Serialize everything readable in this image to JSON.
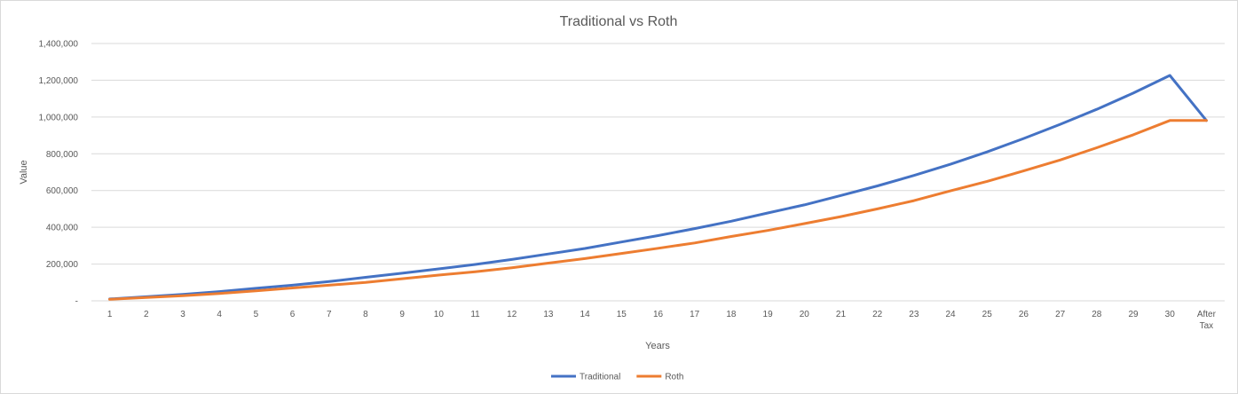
{
  "chart_data": {
    "type": "line",
    "title": "Traditional vs Roth",
    "xlabel": "Years",
    "ylabel": "Value",
    "categories": [
      "1",
      "2",
      "3",
      "4",
      "5",
      "6",
      "7",
      "8",
      "9",
      "10",
      "11",
      "12",
      "13",
      "14",
      "15",
      "16",
      "17",
      "18",
      "19",
      "20",
      "21",
      "22",
      "23",
      "24",
      "25",
      "26",
      "27",
      "28",
      "29",
      "30",
      "After Tax"
    ],
    "y_tick_labels": [
      "-",
      "200,000",
      "400,000",
      "600,000",
      "800,000",
      "1,000,000",
      "1,200,000",
      "1,400,000"
    ],
    "ylim": [
      0,
      1400000
    ],
    "grid": true,
    "legend_position": "bottom",
    "series": [
      {
        "name": "Traditional",
        "color": "#4472c4",
        "values": [
          10000,
          22000,
          35000,
          50000,
          68000,
          85000,
          105000,
          128000,
          150000,
          174000,
          198000,
          225000,
          255000,
          285000,
          320000,
          355000,
          393000,
          433000,
          478000,
          522000,
          573000,
          625000,
          682000,
          743000,
          810000,
          883000,
          960000,
          1042000,
          1130000,
          1226000,
          981000
        ]
      },
      {
        "name": "Roth",
        "color": "#ed7d31",
        "values": [
          8000,
          18000,
          28000,
          40000,
          54000,
          70000,
          85000,
          100000,
          120000,
          140000,
          158000,
          180000,
          205000,
          230000,
          258000,
          286000,
          315000,
          350000,
          383000,
          420000,
          458000,
          500000,
          545000,
          598000,
          650000,
          707000,
          766000,
          833000,
          903000,
          981000,
          981000
        ]
      }
    ]
  }
}
